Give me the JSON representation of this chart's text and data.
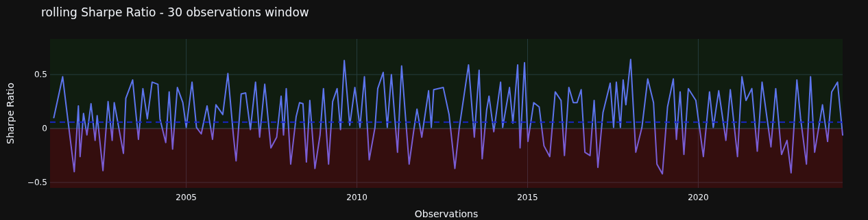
{
  "chart_data": {
    "type": "line",
    "title": "rolling Sharpe Ratio - 30 observations window",
    "xlabel": "Observations",
    "ylabel": "Sharpe Ratio",
    "x": [
      2001.12,
      2001.38,
      2001.49,
      2001.72,
      2001.84,
      2001.89,
      2001.99,
      2002.09,
      2002.21,
      2002.33,
      2002.39,
      2002.56,
      2002.71,
      2002.83,
      2002.89,
      2003.16,
      2003.23,
      2003.43,
      2003.6,
      2003.73,
      2003.86,
      2004.0,
      2004.17,
      2004.23,
      2004.4,
      2004.5,
      2004.6,
      2004.74,
      2004.9,
      2005.0,
      2005.17,
      2005.3,
      2005.44,
      2005.61,
      2005.77,
      2005.87,
      2006.07,
      2006.22,
      2006.38,
      2006.46,
      2006.61,
      2006.74,
      2006.88,
      2007.03,
      2007.15,
      2007.3,
      2007.48,
      2007.65,
      2007.78,
      2007.85,
      2007.93,
      2008.06,
      2008.22,
      2008.32,
      2008.42,
      2008.52,
      2008.62,
      2008.77,
      2008.92,
      2009.02,
      2009.17,
      2009.29,
      2009.42,
      2009.52,
      2009.63,
      2009.79,
      2009.94,
      2010.09,
      2010.22,
      2010.36,
      2010.53,
      2010.61,
      2010.77,
      2010.89,
      2011.01,
      2011.19,
      2011.31,
      2011.53,
      2011.66,
      2011.76,
      2011.9,
      2012.1,
      2012.18,
      2012.25,
      2012.53,
      2012.7,
      2012.87,
      2013.0,
      2013.14,
      2013.27,
      2013.44,
      2013.58,
      2013.67,
      2013.8,
      2013.87,
      2014.01,
      2014.21,
      2014.27,
      2014.47,
      2014.57,
      2014.71,
      2014.78,
      2014.91,
      2015.01,
      2015.18,
      2015.34,
      2015.48,
      2015.65,
      2015.81,
      2015.98,
      2016.08,
      2016.21,
      2016.34,
      2016.45,
      2016.57,
      2016.68,
      2016.83,
      2016.95,
      2017.06,
      2017.21,
      2017.42,
      2017.52,
      2017.6,
      2017.72,
      2017.8,
      2017.88,
      2018.02,
      2018.17,
      2018.35,
      2018.52,
      2018.69,
      2018.79,
      2018.95,
      2019.1,
      2019.27,
      2019.36,
      2019.47,
      2019.58,
      2019.71,
      2019.93,
      2020.15,
      2020.33,
      2020.44,
      2020.6,
      2020.81,
      2020.94,
      2021.15,
      2021.28,
      2021.4,
      2021.57,
      2021.73,
      2021.87,
      2022.13,
      2022.27,
      2022.44,
      2022.6,
      2022.72,
      2022.89,
      2023.0,
      2023.17,
      2023.29,
      2023.41,
      2023.64,
      2023.79,
      2023.91,
      2024.08,
      2024.23
    ],
    "series": [
      {
        "color": "#636efa",
        "values": [
          0.1,
          0.48,
          0.19,
          -0.4,
          0.21,
          -0.26,
          0.14,
          -0.06,
          0.23,
          -0.11,
          0.12,
          -0.39,
          0.25,
          -0.11,
          0.24,
          -0.23,
          0.28,
          0.45,
          -0.1,
          0.37,
          0.09,
          0.43,
          0.41,
          0.09,
          -0.13,
          0.34,
          -0.19,
          0.38,
          0.24,
          0.01,
          0.43,
          0.01,
          -0.05,
          0.21,
          -0.1,
          0.22,
          0.13,
          0.51,
          -0.06,
          -0.3,
          0.32,
          0.33,
          -0.01,
          0.43,
          -0.08,
          0.41,
          -0.18,
          -0.08,
          0.3,
          -0.06,
          0.37,
          -0.33,
          0.11,
          0.24,
          0.23,
          -0.31,
          0.26,
          -0.37,
          -0.06,
          0.37,
          -0.33,
          0.25,
          0.37,
          -0.01,
          0.63,
          0.03,
          0.38,
          0.01,
          0.48,
          -0.29,
          0.01,
          0.37,
          0.52,
          0.01,
          0.5,
          -0.22,
          0.58,
          -0.33,
          -0.03,
          0.18,
          -0.08,
          0.35,
          0.01,
          0.36,
          0.38,
          0.13,
          -0.37,
          0.01,
          0.31,
          0.59,
          -0.08,
          0.54,
          -0.28,
          0.17,
          0.3,
          -0.03,
          0.43,
          0.01,
          0.38,
          0.05,
          0.59,
          -0.18,
          0.61,
          -0.12,
          0.24,
          0.2,
          -0.16,
          -0.26,
          0.34,
          0.26,
          -0.25,
          0.38,
          0.24,
          0.24,
          0.36,
          -0.22,
          -0.25,
          0.26,
          -0.36,
          0.15,
          0.42,
          0.01,
          0.43,
          0.01,
          0.45,
          0.22,
          0.64,
          -0.22,
          0.01,
          0.46,
          0.24,
          -0.33,
          -0.42,
          0.2,
          0.46,
          -0.1,
          0.34,
          -0.24,
          0.37,
          0.26,
          -0.26,
          0.34,
          0.01,
          0.35,
          -0.11,
          0.36,
          -0.26,
          0.48,
          0.26,
          0.37,
          -0.21,
          0.43,
          -0.17,
          0.37,
          -0.24,
          -0.11,
          -0.41,
          0.45,
          0.09,
          -0.33,
          0.48,
          -0.22,
          0.22,
          -0.12,
          0.34,
          0.43,
          -0.06
        ]
      }
    ],
    "xlim": [
      2001.01,
      2024.23
    ],
    "xticks": [
      2005,
      2010,
      2015,
      2020
    ],
    "ylim": [
      -0.55,
      0.83
    ],
    "yticks": [
      {
        "value": -0.5,
        "label": "−0.5"
      },
      0,
      0.5
    ],
    "grid": true,
    "ref_lines": [
      {
        "axis": "y",
        "value": 0.059,
        "color": "#1a1ad0",
        "line_style": "dashed"
      }
    ],
    "bands": [
      {
        "axis": "y",
        "from": 0,
        "to": 0.83,
        "color": "#00ff00"
      },
      {
        "axis": "y",
        "from": -0.55,
        "to": 0,
        "color": "#ff0000"
      }
    ]
  }
}
